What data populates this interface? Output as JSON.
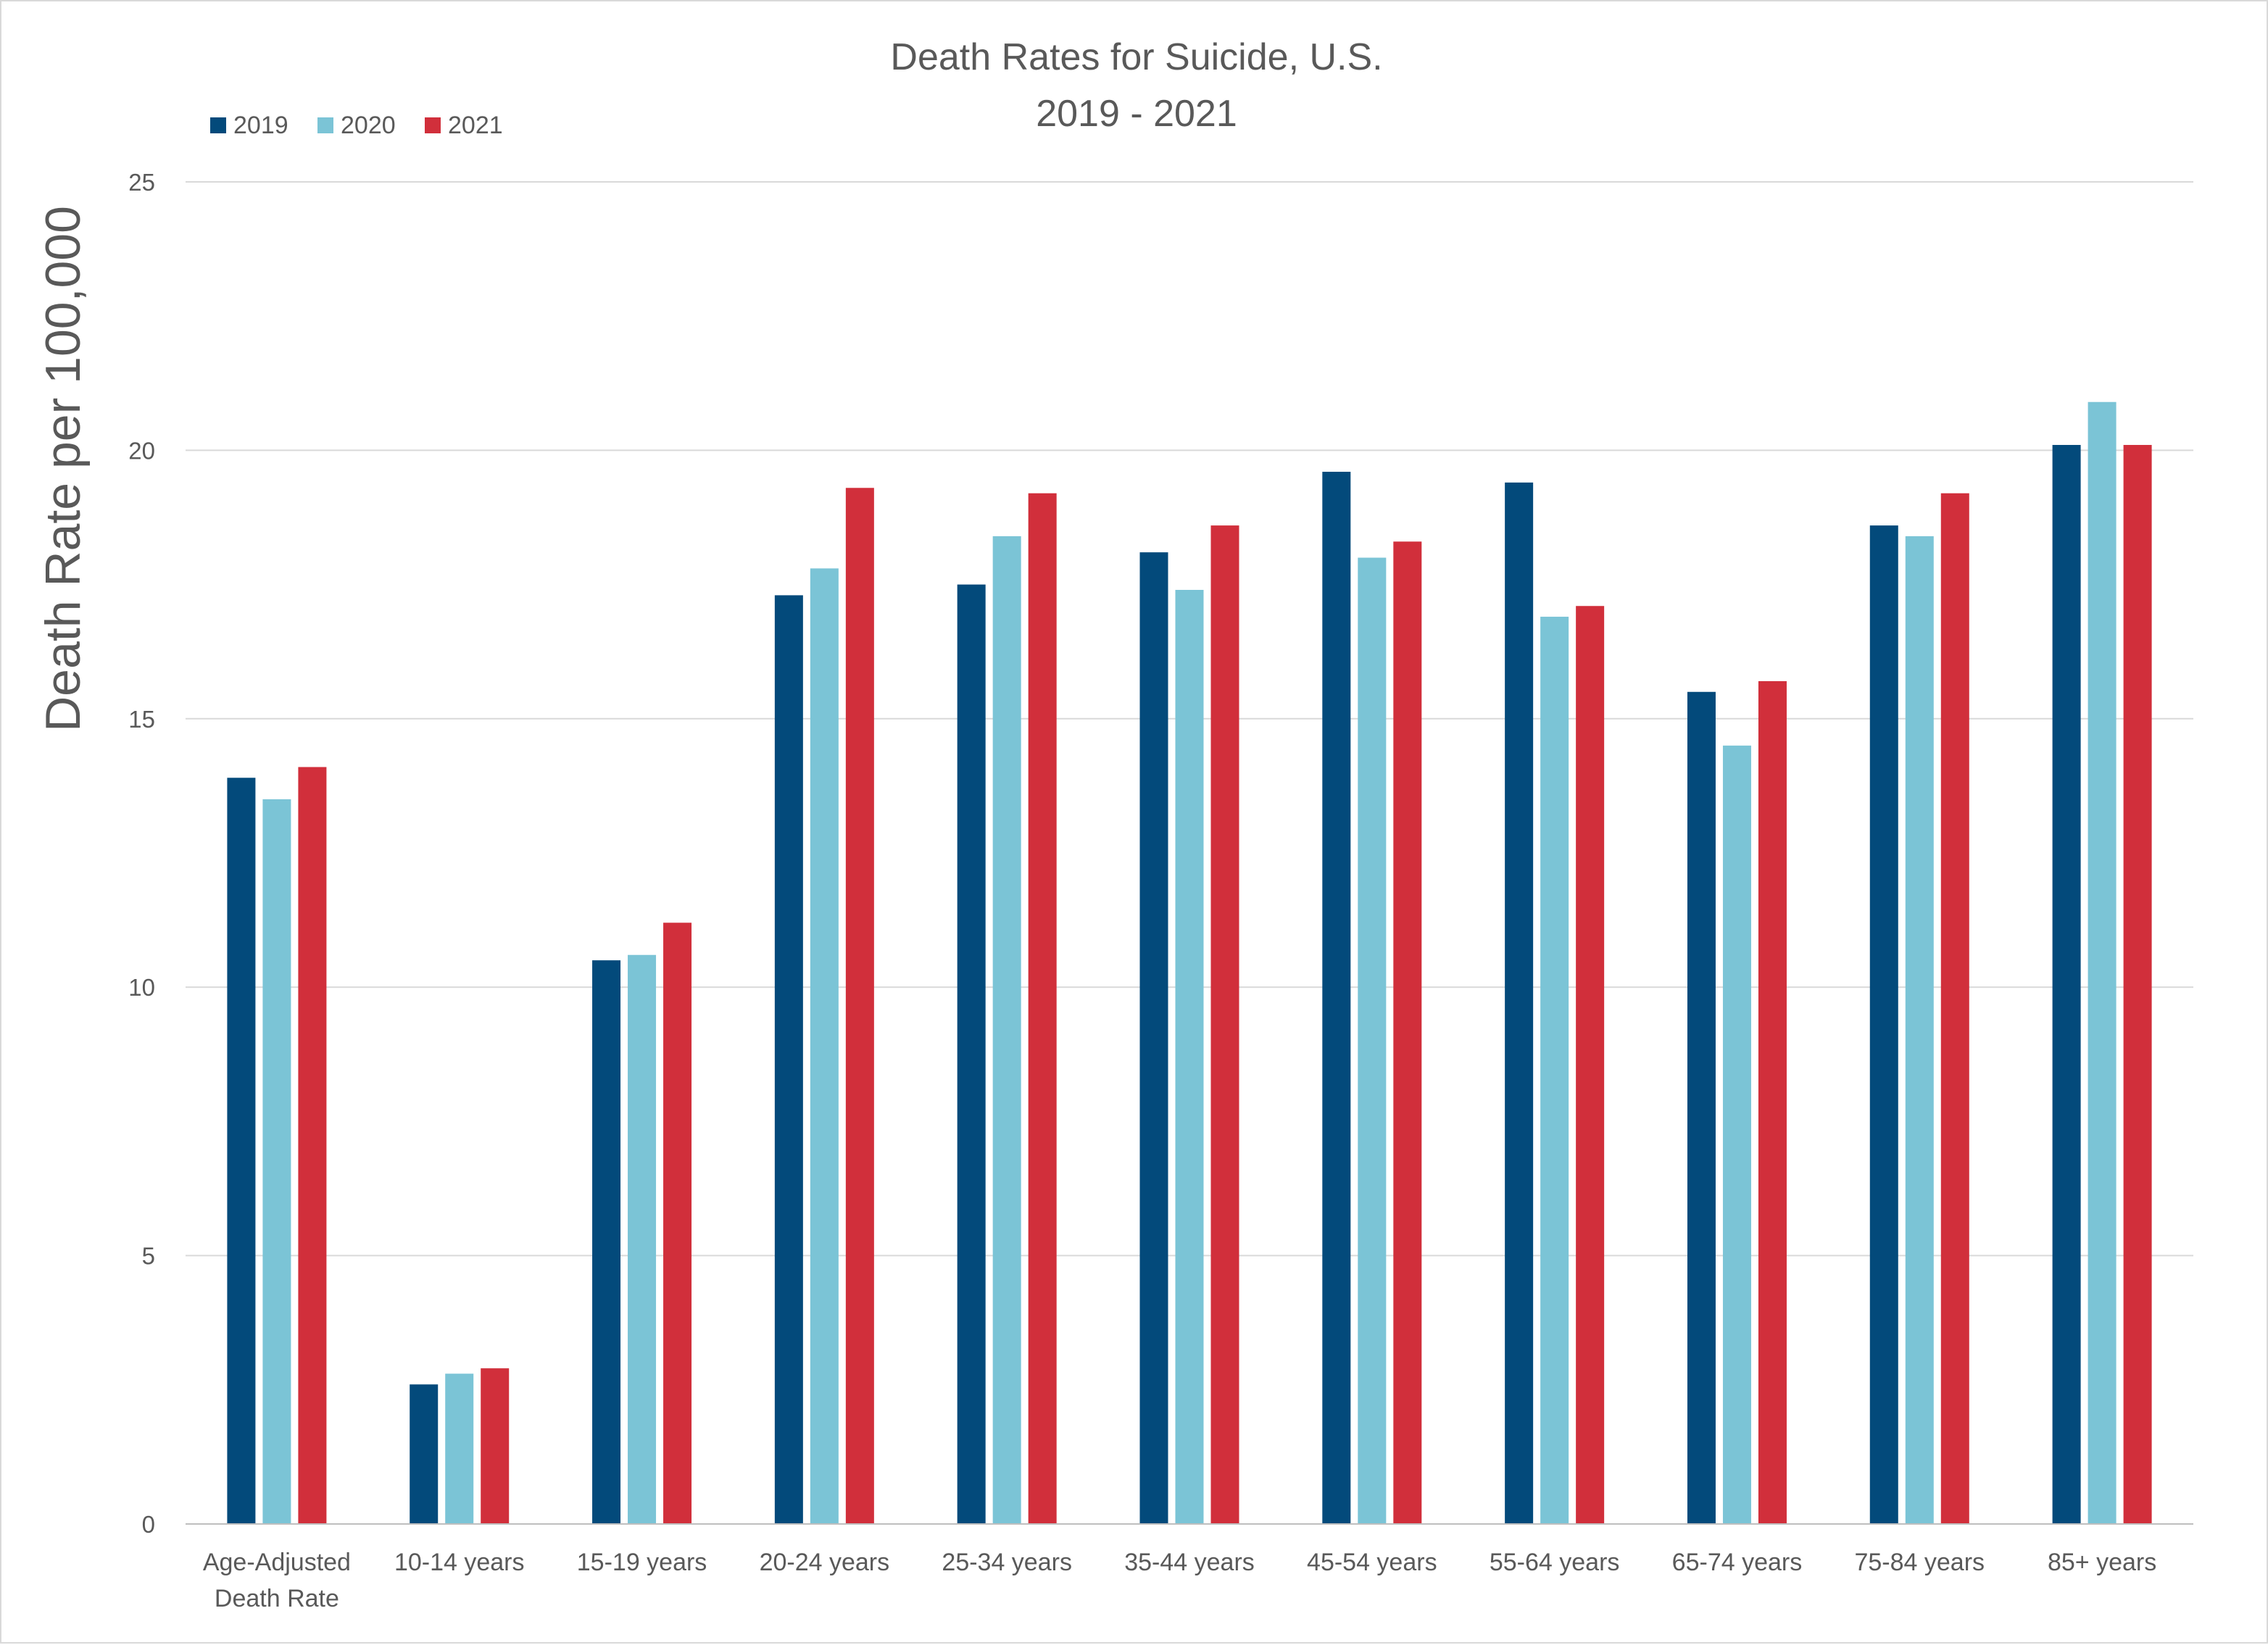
{
  "chart_data": {
    "type": "bar",
    "title": "Death Rates for Suicide, U.S.",
    "subtitle": "2019 - 2021",
    "ylabel": "Death Rate per 100,000",
    "xlabel": "",
    "ylim": [
      0,
      25
    ],
    "yticks": [
      0,
      5,
      10,
      15,
      20,
      25
    ],
    "grid": true,
    "legend_position": "top-left",
    "categories": [
      [
        "Age-Adjusted",
        "Death Rate"
      ],
      [
        "10-14 years"
      ],
      [
        "15-19 years"
      ],
      [
        "20-24 years"
      ],
      [
        "25-34 years"
      ],
      [
        "35-44 years"
      ],
      [
        "45-54 years"
      ],
      [
        "55-64 years"
      ],
      [
        "65-74 years"
      ],
      [
        "75-84 years"
      ],
      [
        "85+ years"
      ]
    ],
    "series": [
      {
        "name": "2019",
        "color": "#034a7b",
        "values": [
          13.9,
          2.6,
          10.5,
          17.3,
          17.5,
          18.1,
          19.6,
          19.4,
          15.5,
          18.6,
          20.1
        ]
      },
      {
        "name": "2020",
        "color": "#7bc4d6",
        "values": [
          13.5,
          2.8,
          10.6,
          17.8,
          18.4,
          17.4,
          18.0,
          16.9,
          14.5,
          18.4,
          20.9
        ]
      },
      {
        "name": "2021",
        "color": "#d12f3b",
        "values": [
          14.1,
          2.9,
          11.2,
          19.3,
          19.2,
          18.6,
          18.3,
          17.1,
          15.7,
          19.2,
          20.1
        ]
      }
    ]
  }
}
